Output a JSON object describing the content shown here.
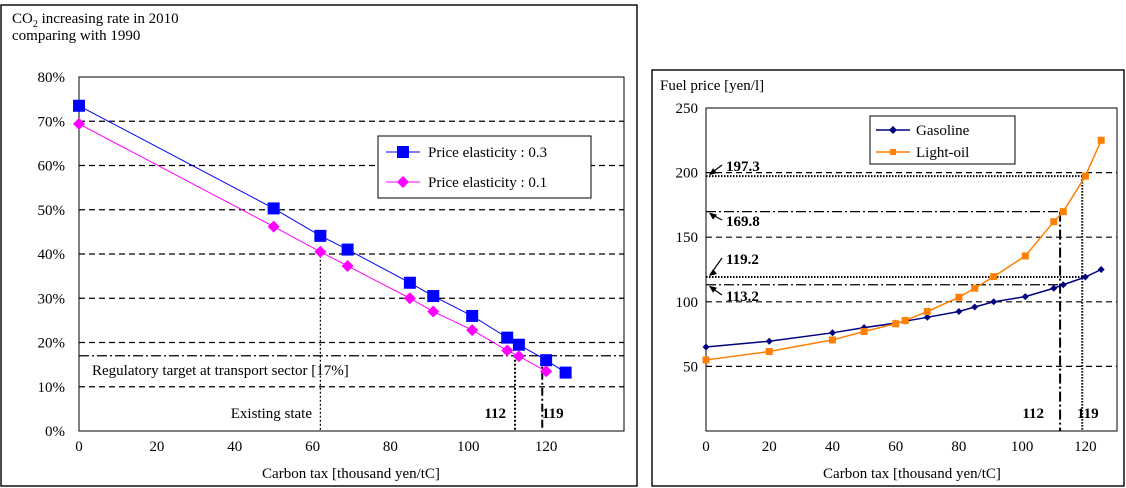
{
  "chart_data": [
    {
      "type": "line",
      "title": "CO2 increasing rate in 2010 comparing with 1990",
      "title_parts": {
        "pre": "CO",
        "sub": "2",
        "post": " increasing rate in 2010",
        "line2": "comparing with 1990"
      },
      "xlabel": "Carbon tax [thousand yen/tC]",
      "ylabel": "",
      "xlim": [
        0,
        140
      ],
      "ylim": [
        0,
        80
      ],
      "x_ticks": [
        "0",
        "20",
        "40",
        "60",
        "80",
        "100",
        "120"
      ],
      "y_ticks": [
        "0%",
        "10%",
        "20%",
        "30%",
        "40%",
        "50%",
        "60%",
        "70%",
        "80%"
      ],
      "grid": "horizontal dashed",
      "legend_position": "upper-right",
      "series": [
        {
          "name": "Price elasticity : 0.3",
          "color": "#0000ff",
          "marker": "square",
          "x": [
            0,
            50,
            62,
            69,
            85,
            91,
            101,
            110,
            113,
            120,
            125
          ],
          "y": [
            73.5,
            50.3,
            44.1,
            41.0,
            33.5,
            30.5,
            26.0,
            21.1,
            19.5,
            16.0,
            13.2
          ]
        },
        {
          "name": "Price elasticity : 0.1",
          "color": "#ff00ff",
          "marker": "diamond",
          "x": [
            0,
            50,
            62,
            69,
            85,
            91,
            101,
            110,
            113,
            120
          ],
          "y": [
            69.4,
            46.2,
            40.5,
            37.3,
            30.0,
            27.0,
            22.8,
            18.2,
            16.9,
            13.5
          ]
        }
      ],
      "target": {
        "value": 17,
        "label": "Regulatory target at transport sector [17%]"
      },
      "annotations": {
        "existing_label": "Existing state",
        "existing_x": 62,
        "mark1_label": "112",
        "mark1_x": 112,
        "mark2_label": "119",
        "mark2_x": 119
      }
    },
    {
      "type": "line",
      "title": "Fuel price [yen/l]",
      "xlabel": "Carbon tax [thousand yen/tC]",
      "ylabel": "",
      "xlim": [
        0,
        130
      ],
      "ylim": [
        0,
        250
      ],
      "x_ticks": [
        "0",
        "20",
        "40",
        "60",
        "80",
        "100",
        "120"
      ],
      "y_ticks": [
        "",
        "50",
        "100",
        "150",
        "200",
        "250"
      ],
      "grid": "horizontal dashed",
      "legend_position": "upper-center",
      "series": [
        {
          "name": "Gasoline",
          "color": "#000080",
          "marker": "diamond",
          "x": [
            0,
            20,
            40,
            50,
            60,
            63,
            70,
            80,
            85,
            91,
            101,
            110,
            113,
            120,
            125
          ],
          "y": [
            65,
            69.5,
            76,
            80,
            83.5,
            85,
            88,
            92.5,
            96,
            100,
            104,
            110.5,
            113.2,
            119.2,
            125
          ]
        },
        {
          "name": "Light-oil",
          "color": "#ff7f00",
          "marker": "square",
          "x": [
            0,
            20,
            40,
            50,
            60,
            63,
            70,
            80,
            85,
            91,
            101,
            110,
            113,
            120,
            125
          ],
          "y": [
            55,
            61.5,
            70.5,
            77,
            83,
            85.5,
            92.5,
            103.5,
            110.5,
            119.5,
            135.5,
            162,
            169.8,
            197.3,
            225
          ]
        }
      ],
      "annotations": [
        {
          "label": "197.3",
          "value": 197.3,
          "at_x": 119
        },
        {
          "label": "169.8",
          "value": 169.8,
          "at_x": 112
        },
        {
          "label": "119.2",
          "value": 119.2,
          "at_x": 119
        },
        {
          "label": "113.2",
          "value": 113.2,
          "at_x": 112
        }
      ],
      "marks": [
        {
          "label": "112",
          "x": 112
        },
        {
          "label": "119",
          "x": 119
        }
      ]
    }
  ]
}
